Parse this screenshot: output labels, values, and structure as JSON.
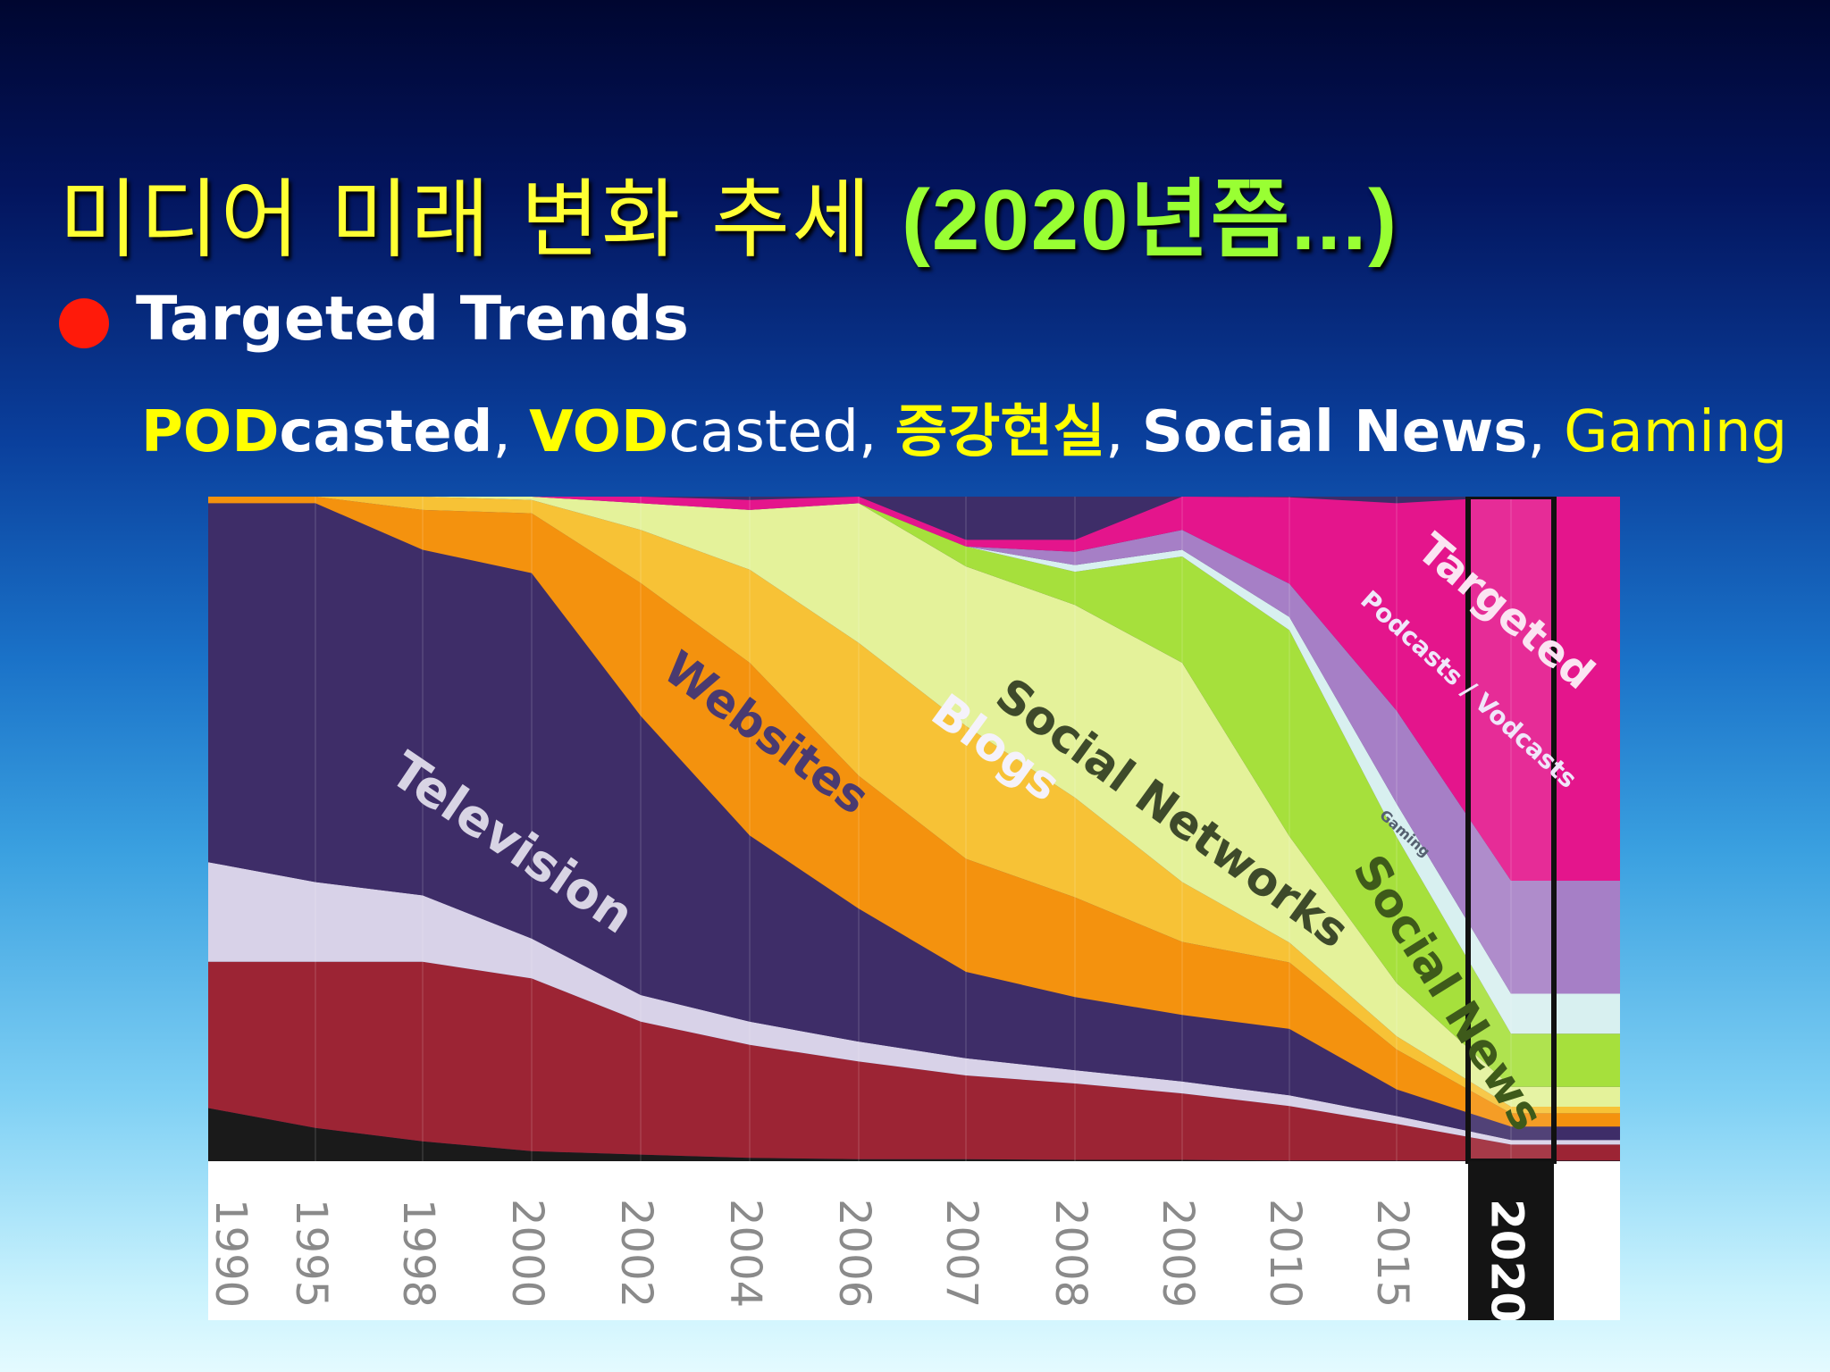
{
  "slide": {
    "title_main": "미디어 미래 변화 추세 ",
    "title_year": "(2020년쯤...)",
    "bullet": "Targeted Trends",
    "subline": [
      {
        "text": "POD",
        "style": "y"
      },
      {
        "text": "casted",
        "style": "w"
      },
      {
        "text": ", ",
        "style": "plain"
      },
      {
        "text": "VOD",
        "style": "y"
      },
      {
        "text": "casted",
        "style": "plain"
      },
      {
        "text": ", ",
        "style": "plain"
      },
      {
        "text": "증강현실",
        "style": "y"
      },
      {
        "text": ", ",
        "style": "plain"
      },
      {
        "text": "Social News",
        "style": "w"
      },
      {
        "text": ", ",
        "style": "plain"
      },
      {
        "text": "Gaming",
        "style": "yn"
      }
    ]
  },
  "colors": {
    "bullet_dot": "#ff1a0a",
    "title": "#ffff33",
    "title_year": "#99ff33"
  },
  "chart_data": {
    "type": "area",
    "x": [
      "1990",
      "1995",
      "1998",
      "2000",
      "2002",
      "2004",
      "2006",
      "2007",
      "2008",
      "2009",
      "2010",
      "2015",
      "2020"
    ],
    "highlight_x": "2020",
    "ylim": [
      0,
      100
    ],
    "series": [
      {
        "name": "",
        "color": "#1a1a1a",
        "values": [
          8,
          5,
          3,
          1.5,
          1,
          0.5,
          0.3,
          0.3,
          0.2,
          0.2,
          0.1,
          0.1,
          0.1
        ]
      },
      {
        "name": "",
        "color": "#9c2434",
        "values": [
          22,
          25,
          27,
          26,
          20,
          17,
          14.7,
          12.6,
          11.5,
          10,
          8.2,
          5.5,
          2.4
        ]
      },
      {
        "name": "",
        "color": "#d8d2e8",
        "values": [
          15,
          12,
          10,
          6,
          4,
          3.5,
          3,
          2.6,
          2,
          1.8,
          1.6,
          1.2,
          0.7
        ]
      },
      {
        "name": "Television",
        "color": "#3e2d68",
        "values": [
          54,
          57,
          52,
          55,
          42,
          28,
          20,
          13,
          11,
          10,
          10,
          4,
          2
        ]
      },
      {
        "name": "Websites",
        "color": "#f4920e",
        "values": [
          1,
          1,
          6,
          9,
          20,
          26,
          20,
          17,
          15,
          11,
          10,
          6,
          2
        ]
      },
      {
        "name": "Blogs",
        "color": "#f7c236",
        "values": [
          0,
          0,
          2,
          2,
          8,
          14,
          20,
          20,
          15,
          9,
          3,
          2,
          1
        ]
      },
      {
        "name": "Social Networks",
        "color": "#e4f29a",
        "values": [
          0,
          0,
          0,
          0.5,
          4,
          9,
          21,
          24,
          29,
          33,
          16,
          8,
          3
        ]
      },
      {
        "name": "Social News",
        "color": "#a6e03c",
        "values": [
          0,
          0,
          0,
          0,
          0,
          0,
          0,
          3,
          5,
          16,
          31,
          22,
          8
        ]
      },
      {
        "name": "Gaming",
        "color": "#d8f0f0",
        "values": [
          0,
          0,
          0,
          0,
          0,
          0,
          0,
          0,
          1,
          1,
          2,
          5,
          6
        ]
      },
      {
        "name": "Podcasts / Vodcasts",
        "color": "#a67fc6",
        "values": [
          0,
          0,
          0,
          0,
          0,
          0,
          0,
          0,
          2,
          3,
          5,
          14,
          17
        ]
      },
      {
        "name": "Targeted",
        "color": "#e4158c",
        "values": [
          0,
          0,
          0,
          0,
          1,
          1.5,
          1,
          1,
          1.8,
          5,
          13,
          31.2,
          57.8
        ]
      }
    ]
  }
}
